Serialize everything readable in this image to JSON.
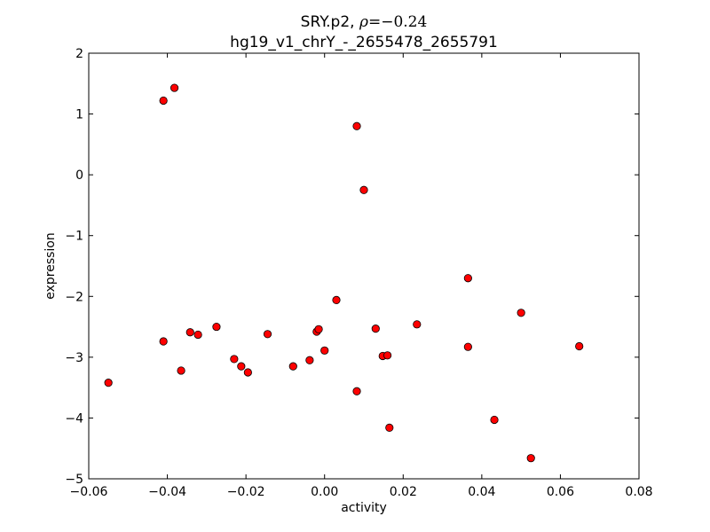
{
  "chart_data": {
    "type": "scatter",
    "title": {
      "gene": "SRY.p2,",
      "rho_symbol": "ρ",
      "equals": "=",
      "rho_value": "−0.24",
      "subtitle": "hg19_v1_chrY_-_2655478_2655791"
    },
    "xlabel": "activity",
    "ylabel": "expression",
    "xlim": [
      -0.06,
      0.08
    ],
    "ylim": [
      -5,
      2
    ],
    "xticks": [
      -0.06,
      -0.04,
      -0.02,
      0.0,
      0.02,
      0.04,
      0.06,
      0.08
    ],
    "xtick_labels": [
      "−0.06",
      "−0.04",
      "−0.02",
      "0.00",
      "0.02",
      "0.04",
      "0.06",
      "0.08"
    ],
    "yticks": [
      -5,
      -4,
      -3,
      -2,
      -1,
      0,
      1,
      2
    ],
    "ytick_labels": [
      "−5",
      "−4",
      "−3",
      "−2",
      "−1",
      "0",
      "1",
      "2"
    ],
    "grid": false,
    "marker_color": "#ff0000",
    "marker_edge_color": "#000000",
    "points": [
      {
        "x": -0.055,
        "y": -3.42
      },
      {
        "x": -0.041,
        "y": 1.22
      },
      {
        "x": -0.0382,
        "y": 1.43
      },
      {
        "x": -0.041,
        "y": -2.74
      },
      {
        "x": -0.0365,
        "y": -3.22
      },
      {
        "x": -0.0342,
        "y": -2.59
      },
      {
        "x": -0.0322,
        "y": -2.63
      },
      {
        "x": -0.0275,
        "y": -2.5
      },
      {
        "x": -0.023,
        "y": -3.03
      },
      {
        "x": -0.0212,
        "y": -3.15
      },
      {
        "x": -0.0195,
        "y": -3.25
      },
      {
        "x": -0.0145,
        "y": -2.62
      },
      {
        "x": -0.008,
        "y": -3.15
      },
      {
        "x": -0.0038,
        "y": -3.05
      },
      {
        "x": -0.002,
        "y": -2.58
      },
      {
        "x": -0.0015,
        "y": -2.54
      },
      {
        "x": 0.0,
        "y": -2.89
      },
      {
        "x": 0.003,
        "y": -2.06
      },
      {
        "x": 0.0082,
        "y": 0.8
      },
      {
        "x": 0.01,
        "y": -0.25
      },
      {
        "x": 0.013,
        "y": -2.53
      },
      {
        "x": 0.0082,
        "y": -3.56
      },
      {
        "x": 0.0148,
        "y": -2.98
      },
      {
        "x": 0.016,
        "y": -2.97
      },
      {
        "x": 0.0165,
        "y": -4.16
      },
      {
        "x": 0.0235,
        "y": -2.46
      },
      {
        "x": 0.0365,
        "y": -1.7
      },
      {
        "x": 0.0365,
        "y": -2.83
      },
      {
        "x": 0.0432,
        "y": -4.03
      },
      {
        "x": 0.05,
        "y": -2.27
      },
      {
        "x": 0.0525,
        "y": -4.66
      },
      {
        "x": 0.0648,
        "y": -2.82
      }
    ]
  }
}
